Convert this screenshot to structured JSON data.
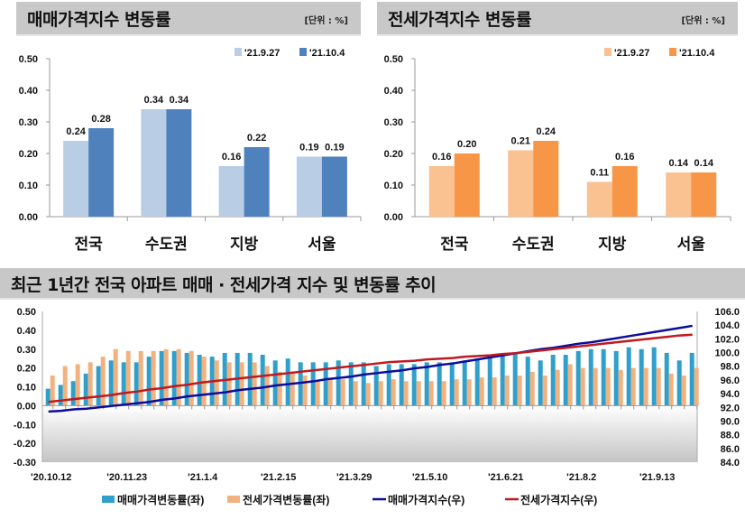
{
  "panels": [
    {
      "title": "매매가격지수 변동률",
      "unit": "[단위 : %]"
    },
    {
      "title": "전세가격지수 변동률",
      "unit": "[단위 : %]"
    },
    {
      "title": "최근 1년간 전국 아파트 매매 · 전세가격 지수 및 변동률 추이"
    }
  ],
  "chart_data": [
    {
      "type": "bar",
      "categories": [
        "전국",
        "수도권",
        "지방",
        "서울"
      ],
      "series": [
        {
          "name": "'21.9.27",
          "values": [
            0.24,
            0.34,
            0.16,
            0.19
          ],
          "color": "#b9cde5"
        },
        {
          "name": "'21.10.4",
          "values": [
            0.28,
            0.34,
            0.22,
            0.19
          ],
          "color": "#4f81bd"
        }
      ],
      "ylim": [
        0,
        0.5
      ],
      "yticks": [
        "0.00",
        "0.10",
        "0.20",
        "0.30",
        "0.40",
        "0.50"
      ],
      "legend": "top-right"
    },
    {
      "type": "bar",
      "categories": [
        "전국",
        "수도권",
        "지방",
        "서울"
      ],
      "series": [
        {
          "name": "'21.9.27",
          "values": [
            0.16,
            0.21,
            0.11,
            0.14
          ],
          "color": "#fac191"
        },
        {
          "name": "'21.10.4",
          "values": [
            0.2,
            0.24,
            0.16,
            0.14
          ],
          "color": "#f79646"
        }
      ],
      "ylim": [
        0,
        0.5
      ],
      "yticks": [
        "0.00",
        "0.10",
        "0.20",
        "0.30",
        "0.40",
        "0.50"
      ],
      "legend": "top-right"
    },
    {
      "type": "bar+line",
      "xticklabels": [
        "'20.10.12",
        "'20.11.23",
        "'21.1.4",
        "'21.2.15",
        "'21.3.29",
        "'21.5.10",
        "'21.6.21",
        "'21.8.2",
        "'21.9.13"
      ],
      "ylim_left": [
        -0.3,
        0.5
      ],
      "yticks_left": [
        "-0.30",
        "-0.20",
        "-0.10",
        "0.00",
        "0.10",
        "0.20",
        "0.30",
        "0.40",
        "0.50"
      ],
      "ylim_right": [
        84,
        106
      ],
      "yticks_right": [
        "84.0",
        "86.0",
        "88.0",
        "90.0",
        "92.0",
        "94.0",
        "96.0",
        "98.0",
        "100.0",
        "102.0",
        "104.0",
        "106.0"
      ],
      "legend": "bottom",
      "series": [
        {
          "name": "매매가격변동률(좌)",
          "axis": "left",
          "kind": "bar",
          "color": "#2f9fcb",
          "values": [
            0.09,
            0.11,
            0.13,
            0.17,
            0.21,
            0.24,
            0.23,
            0.23,
            0.26,
            0.29,
            0.29,
            0.28,
            0.27,
            0.26,
            0.28,
            0.28,
            0.28,
            0.27,
            0.24,
            0.25,
            0.23,
            0.23,
            0.23,
            0.24,
            0.23,
            0.23,
            0.21,
            0.22,
            0.22,
            0.22,
            0.23,
            0.23,
            0.23,
            0.24,
            0.25,
            0.26,
            0.27,
            0.28,
            0.26,
            0.24,
            0.27,
            0.27,
            0.29,
            0.3,
            0.3,
            0.29,
            0.31,
            0.3,
            0.31,
            0.28,
            0.24,
            0.28
          ]
        },
        {
          "name": "전세가격변동률(좌)",
          "axis": "left",
          "kind": "bar",
          "color": "#f2b27f",
          "values": [
            0.16,
            0.21,
            0.22,
            0.23,
            0.26,
            0.3,
            0.29,
            0.29,
            0.29,
            0.3,
            0.3,
            0.29,
            0.26,
            0.24,
            0.23,
            0.23,
            0.23,
            0.21,
            0.18,
            0.18,
            0.16,
            0.13,
            0.14,
            0.14,
            0.13,
            0.12,
            0.13,
            0.14,
            0.13,
            0.13,
            0.13,
            0.13,
            0.14,
            0.14,
            0.15,
            0.15,
            0.16,
            0.16,
            0.18,
            0.16,
            0.19,
            0.22,
            0.2,
            0.2,
            0.2,
            0.19,
            0.2,
            0.2,
            0.2,
            0.17,
            0.16,
            0.2
          ]
        },
        {
          "name": "매매가격지수(우)",
          "axis": "right",
          "kind": "line",
          "color": "#0c0c9c",
          "values": [
            91.4,
            91.5,
            91.7,
            91.8,
            92.0,
            92.2,
            92.4,
            92.6,
            92.8,
            93.1,
            93.3,
            93.6,
            93.8,
            94.0,
            94.2,
            94.5,
            94.7,
            94.9,
            95.2,
            95.4,
            95.6,
            95.8,
            96.1,
            96.3,
            96.5,
            96.8,
            97.0,
            97.2,
            97.4,
            97.7,
            97.9,
            98.2,
            98.4,
            98.7,
            99.0,
            99.3,
            99.6,
            99.9,
            100.2,
            100.5,
            100.7,
            101.0,
            101.3,
            101.5,
            101.8,
            102.1,
            102.4,
            102.7,
            103.0,
            103.3,
            103.6,
            103.9
          ]
        },
        {
          "name": "전세가격지수(우)",
          "axis": "right",
          "kind": "line",
          "color": "#c0191e",
          "values": [
            92.8,
            93.0,
            93.2,
            93.4,
            93.6,
            93.8,
            94.1,
            94.3,
            94.6,
            94.8,
            95.1,
            95.3,
            95.6,
            95.8,
            96.0,
            96.2,
            96.4,
            96.6,
            96.8,
            97.0,
            97.2,
            97.4,
            97.6,
            97.8,
            98.0,
            98.2,
            98.4,
            98.6,
            98.7,
            98.8,
            99.0,
            99.1,
            99.2,
            99.4,
            99.5,
            99.6,
            99.8,
            99.9,
            100.1,
            100.3,
            100.5,
            100.7,
            100.9,
            101.1,
            101.3,
            101.5,
            101.7,
            101.9,
            102.1,
            102.3,
            102.5,
            102.6
          ]
        }
      ]
    }
  ]
}
